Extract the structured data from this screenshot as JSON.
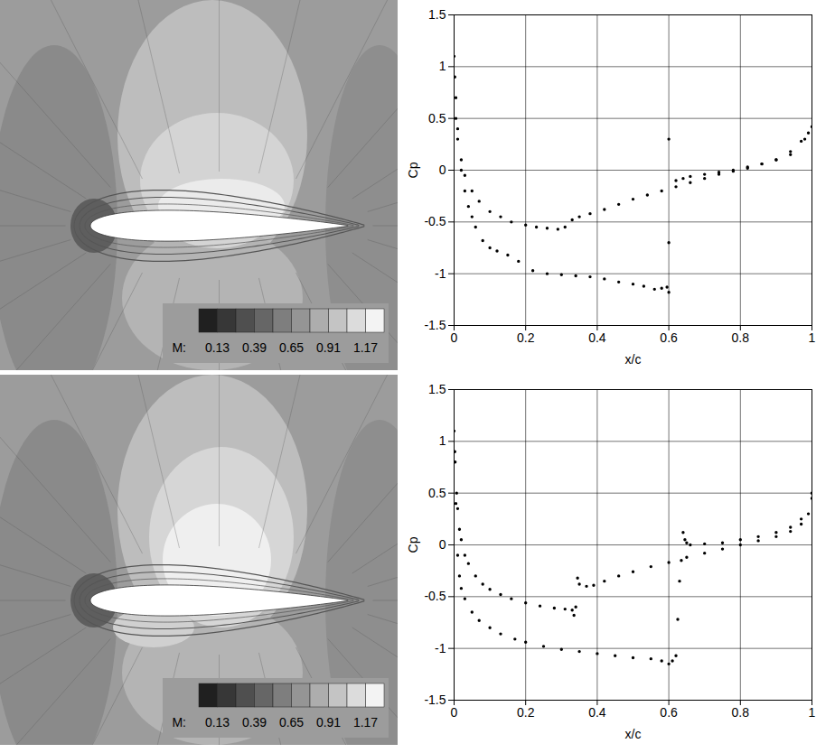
{
  "chart_data": [
    {
      "type": "contour",
      "colorbar_label": "M:",
      "colorbar_range": [
        0,
        1.3
      ],
      "colorbar_ticks": [
        0.13,
        0.39,
        0.65,
        0.91,
        1.17
      ]
    },
    {
      "type": "scatter",
      "xlabel": "x/c",
      "ylabel": "Cp",
      "xlim": [
        0,
        1
      ],
      "ylim": [
        -1.5,
        1.5
      ],
      "xticks": [
        0,
        0.2,
        0.4,
        0.6,
        0.8,
        1
      ],
      "yticks": [
        -1.5,
        -1,
        -0.5,
        0,
        0.5,
        1,
        1.5
      ],
      "grid": true,
      "marker": "circle",
      "series": [
        {
          "color": "#000000",
          "x": [
            0,
            0.002,
            0.005,
            0.01,
            0.02,
            0.03,
            0.05,
            0.07,
            0.1,
            0.13,
            0.16,
            0.2,
            0.23,
            0.26,
            0.29,
            0.31,
            0.33,
            0.35,
            0.38,
            0.42,
            0.46,
            0.5,
            0.54,
            0.58,
            0.62,
            0.66,
            0.7,
            0.74,
            0.78,
            0.82,
            0.86,
            0.9,
            0.94,
            0.97,
            0.99,
            1.0
          ],
          "values": [
            1.1,
            0.9,
            0.7,
            0.4,
            0.1,
            -0.05,
            -0.2,
            -0.3,
            -0.4,
            -0.45,
            -0.5,
            -0.53,
            -0.55,
            -0.56,
            -0.57,
            -0.55,
            -0.48,
            -0.45,
            -0.42,
            -0.38,
            -0.33,
            -0.28,
            -0.24,
            -0.2,
            -0.16,
            -0.12,
            -0.08,
            -0.04,
            -0.01,
            0.02,
            0.06,
            0.1,
            0.18,
            0.28,
            0.36,
            0.42
          ]
        },
        {
          "color": "#000000",
          "x": [
            0.005,
            0.01,
            0.02,
            0.03,
            0.04,
            0.05,
            0.06,
            0.08,
            0.1,
            0.12,
            0.15,
            0.18,
            0.22,
            0.26,
            0.3,
            0.34,
            0.38,
            0.42,
            0.46,
            0.5,
            0.53,
            0.56,
            0.58,
            0.595,
            0.6,
            0.6,
            0.6,
            0.62,
            0.64,
            0.66,
            0.7,
            0.74,
            0.78,
            0.82,
            0.86,
            0.9,
            0.94,
            0.98
          ],
          "values": [
            0.5,
            0.3,
            0.0,
            -0.2,
            -0.35,
            -0.45,
            -0.55,
            -0.68,
            -0.75,
            -0.78,
            -0.82,
            -0.88,
            -0.97,
            -1.0,
            -1.01,
            -1.02,
            -1.03,
            -1.05,
            -1.08,
            -1.1,
            -1.12,
            -1.15,
            -1.14,
            -1.13,
            -1.18,
            0.3,
            -0.7,
            -0.1,
            -0.08,
            -0.06,
            -0.04,
            -0.02,
            0.0,
            0.03,
            0.06,
            0.1,
            0.15,
            0.3
          ]
        }
      ]
    },
    {
      "type": "contour",
      "colorbar_label": "M:",
      "colorbar_range": [
        0,
        1.3
      ],
      "colorbar_ticks": [
        0.13,
        0.39,
        0.65,
        0.91,
        1.17
      ]
    },
    {
      "type": "scatter",
      "xlabel": "x/c",
      "ylabel": "Cp",
      "xlim": [
        0,
        1
      ],
      "ylim": [
        -1.5,
        1.5
      ],
      "xticks": [
        0,
        0.2,
        0.4,
        0.6,
        0.8,
        1
      ],
      "yticks": [
        -1.5,
        -1,
        -0.5,
        0,
        0.5,
        1,
        1.5
      ],
      "grid": true,
      "marker": "circle",
      "series": [
        {
          "color": "#000000",
          "x": [
            0,
            0.003,
            0.007,
            0.01,
            0.015,
            0.02,
            0.03,
            0.04,
            0.06,
            0.08,
            0.1,
            0.13,
            0.16,
            0.2,
            0.24,
            0.28,
            0.31,
            0.33,
            0.335,
            0.34,
            0.345,
            0.35,
            0.37,
            0.39,
            0.42,
            0.46,
            0.5,
            0.55,
            0.6,
            0.65,
            0.7,
            0.75,
            0.8,
            0.85,
            0.9,
            0.94,
            0.97,
            0.99,
            1.0
          ],
          "values": [
            1.1,
            0.8,
            0.5,
            0.35,
            0.15,
            0.05,
            -0.1,
            -0.18,
            -0.3,
            -0.38,
            -0.43,
            -0.48,
            -0.52,
            -0.56,
            -0.59,
            -0.61,
            -0.62,
            -0.63,
            -0.68,
            -0.6,
            -0.32,
            -0.38,
            -0.4,
            -0.39,
            -0.35,
            -0.3,
            -0.26,
            -0.21,
            -0.17,
            -0.12,
            -0.08,
            -0.04,
            0.0,
            0.04,
            0.08,
            0.13,
            0.2,
            0.3,
            0.5
          ]
        },
        {
          "color": "#000000",
          "x": [
            0.002,
            0.005,
            0.01,
            0.015,
            0.02,
            0.03,
            0.05,
            0.07,
            0.1,
            0.13,
            0.17,
            0.2,
            0.25,
            0.3,
            0.35,
            0.4,
            0.45,
            0.5,
            0.55,
            0.58,
            0.6,
            0.61,
            0.62,
            0.625,
            0.63,
            0.635,
            0.64,
            0.645,
            0.65,
            0.66,
            0.7,
            0.75,
            0.8,
            0.85,
            0.9,
            0.94,
            0.97,
            1.0
          ],
          "values": [
            0.9,
            0.4,
            -0.1,
            -0.3,
            -0.42,
            -0.52,
            -0.65,
            -0.73,
            -0.8,
            -0.86,
            -0.91,
            -0.94,
            -0.98,
            -1.01,
            -1.03,
            -1.05,
            -1.07,
            -1.09,
            -1.1,
            -1.12,
            -1.15,
            -1.12,
            -1.07,
            -0.72,
            -0.35,
            -0.15,
            0.12,
            0.05,
            0.02,
            0.0,
            0.01,
            0.02,
            0.05,
            0.08,
            0.12,
            0.17,
            0.25,
            0.45
          ]
        }
      ]
    }
  ]
}
